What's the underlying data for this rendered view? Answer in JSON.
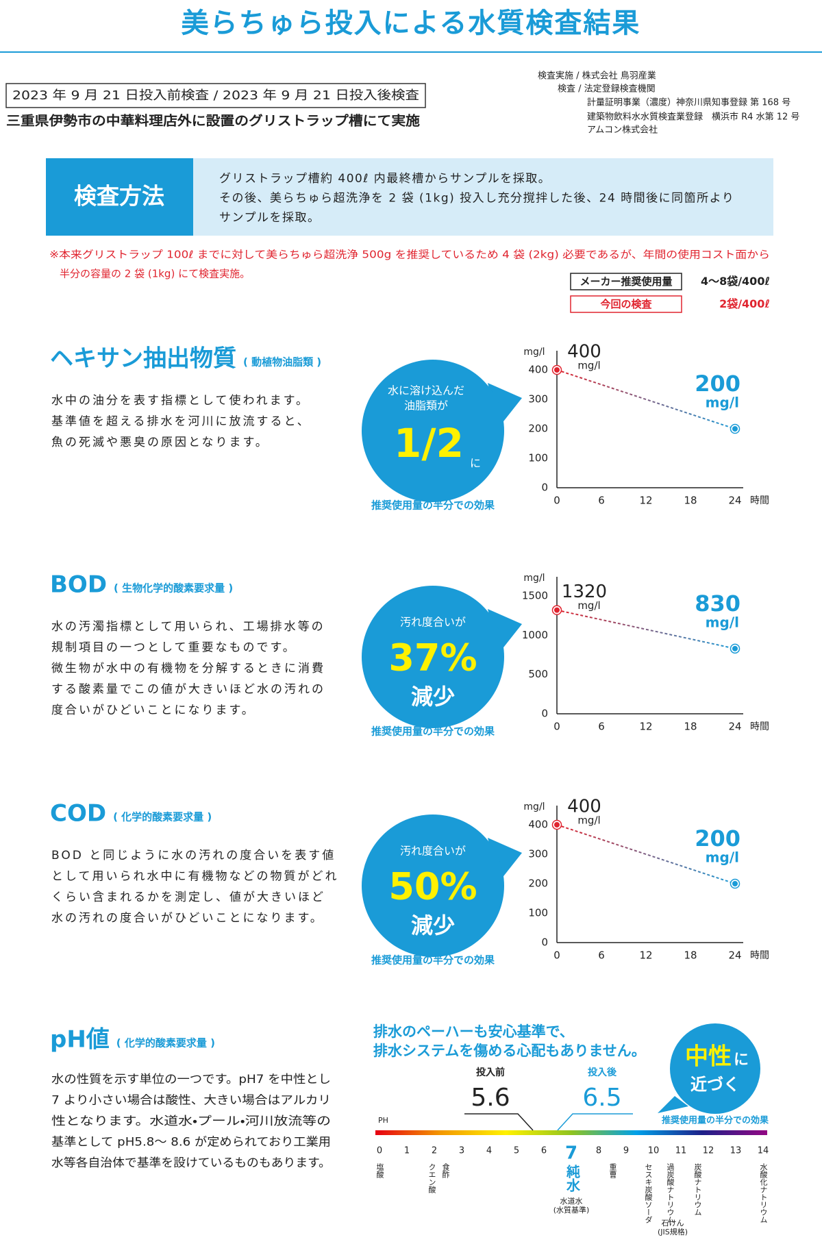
{
  "header": {
    "title": "美らちゅら投入による水質検査結果"
  },
  "inspection": {
    "dates": "2023 年 9 月 21 日投入前検査 / 2023 年 9 月 21 日投入後検査",
    "location": "三重県伊勢市の中華料理店外に設置のグリストラップ槽にて実施",
    "organizations": [
      "検査実施 / 株式会社 鳥羽産業",
      "検査 / 法定登録検査機関",
      "計量証明事業（濃度）神奈川県知事登録 第 168 号",
      "建築物飲料水水質検査業登録　横浜市 R4 水第 12 号",
      "アムコン株式会社"
    ]
  },
  "method": {
    "label": "検査方法",
    "lines": [
      "グリストラップ槽約 400ℓ 内最終槽からサンプルを採取。",
      "その後、美らちゅら超洗浄を 2 袋 (1kg) 投入し充分撹拌した後、24 時間後に同箇所より",
      "サンプルを採取。"
    ]
  },
  "note": {
    "lines": [
      "※本来グリストラップ 100ℓ までに対して美らちゅら超洗浄 500g を推奨しているため 4 袋 (2kg) 必要であるが、年間の使用コスト面から",
      "半分の容量の 2 袋 (1kg) にて検査実施。"
    ]
  },
  "dosage": {
    "rows": [
      {
        "label": "メーカー推奨使用量",
        "amount": "4〜8袋/400ℓ"
      },
      {
        "label": "今回の検査",
        "amount": "2袋/400ℓ"
      }
    ]
  },
  "sections": [
    {
      "title": "ヘキサン抽出物質",
      "subtitle": "( 動植物油脂類 )",
      "lines": [
        "水中の油分を表す指標として使われます。",
        "基準値を超える排水を河川に放流すると、",
        "魚の死滅や悪臭の原因となります。"
      ],
      "bubble": {
        "caption": [
          "水に溶け込んだ",
          "油脂類が"
        ],
        "value": "1/2",
        "suffix": "に"
      },
      "effect": "推奨使用量の半分での効果"
    },
    {
      "title": "BOD",
      "subtitle": "( 生物化学的酸素要求量 )",
      "lines": [
        "水の汚濁指標として用いられ、工場排水等の",
        "規制項目の一つとして重要なものです。",
        "微生物が水中の有機物を分解するときに消費",
        "する酸素量でこの値が大きいほど水の汚れの",
        "度合いがひどいことになります。"
      ],
      "bubble": {
        "caption": [
          "汚れ度合いが"
        ],
        "value": "37%",
        "suffix": "減少"
      },
      "effect": "推奨使用量の半分での効果"
    },
    {
      "title": "COD",
      "subtitle": "( 化学的酸素要求量 )",
      "lines": [
        "BOD と同じように水の汚れの度合いを表す値",
        "として用いられ水中に有機物などの物質がどれ",
        "くらい含まれるかを測定し、値が大きいほど",
        "水の汚れの度合いがひどいことになります。"
      ],
      "bubble": {
        "caption": [
          "汚れ度合いが"
        ],
        "value": "50%",
        "suffix": "減少"
      },
      "effect": "推奨使用量の半分での効果"
    }
  ],
  "chart_data": [
    {
      "type": "line",
      "y_label": "mg/l",
      "x_label": "時間",
      "x": [
        0,
        24
      ],
      "xlim": [
        0,
        24
      ],
      "xticks": [
        0,
        6,
        12,
        18,
        24
      ],
      "ylim": [
        0,
        400
      ],
      "yticks": [
        0,
        100,
        200,
        300,
        400
      ],
      "series": [
        {
          "values": [
            400,
            200
          ],
          "colors": [
            "#e0242f",
            "#1a9bd7"
          ]
        }
      ]
    },
    {
      "type": "line",
      "y_label": "mg/l",
      "x_label": "時間",
      "x": [
        0,
        24
      ],
      "xlim": [
        0,
        24
      ],
      "xticks": [
        0,
        6,
        12,
        18,
        24
      ],
      "ylim": [
        0,
        1500
      ],
      "yticks": [
        0,
        500,
        1000,
        1500
      ],
      "series": [
        {
          "values": [
            1320,
            830
          ],
          "colors": [
            "#e0242f",
            "#1a9bd7"
          ]
        }
      ]
    },
    {
      "type": "line",
      "y_label": "mg/l",
      "x_label": "時間",
      "x": [
        0,
        24
      ],
      "xlim": [
        0,
        24
      ],
      "xticks": [
        0,
        6,
        12,
        18,
        24
      ],
      "ylim": [
        0,
        400
      ],
      "yticks": [
        0,
        100,
        200,
        300,
        400
      ],
      "series": [
        {
          "values": [
            400,
            200
          ],
          "colors": [
            "#e0242f",
            "#1a9bd7"
          ]
        }
      ]
    }
  ],
  "ph": {
    "title": "pH値",
    "subtitle": "( 化学的酸素要求量 )",
    "lines": [
      "水の性質を示す単位の一つです。pH7 を中性とし",
      "7 より小さい場合は酸性、大きい場合はアルカリ",
      "性となります。水道水・プール・河川放流等の",
      "基準として pH5.8〜 8.6 が定められており工業用",
      "水等各自治体で基準を設けているものもあります。"
    ],
    "headline": [
      "排水のペーハーも安心基準で、",
      "排水システムを傷める心配もありません。"
    ],
    "badge": [
      "中性",
      "に",
      "近づく"
    ],
    "effect": "推奨使用量の半分での効果",
    "axis_label": "PH",
    "ticks": [
      0,
      1,
      2,
      3,
      4,
      5,
      6,
      7,
      8,
      9,
      10,
      11,
      12,
      13,
      14
    ],
    "before": {
      "label": "投入前",
      "value": 5.6
    },
    "after": {
      "label": "投入後",
      "value": 6.5
    },
    "substances": [
      "塩酸",
      "食酢",
      "クエン酸",
      "重曹",
      "セスキ炭酸ソーダ",
      "過炭酸ナトリウム",
      "炭酸ナトリウム",
      "水酸化ナトリウム"
    ],
    "pure_water": "純水",
    "tap_water": [
      "水道水",
      "(水質基準)"
    ],
    "soap": [
      "石けん",
      "(JIS規格)"
    ]
  }
}
